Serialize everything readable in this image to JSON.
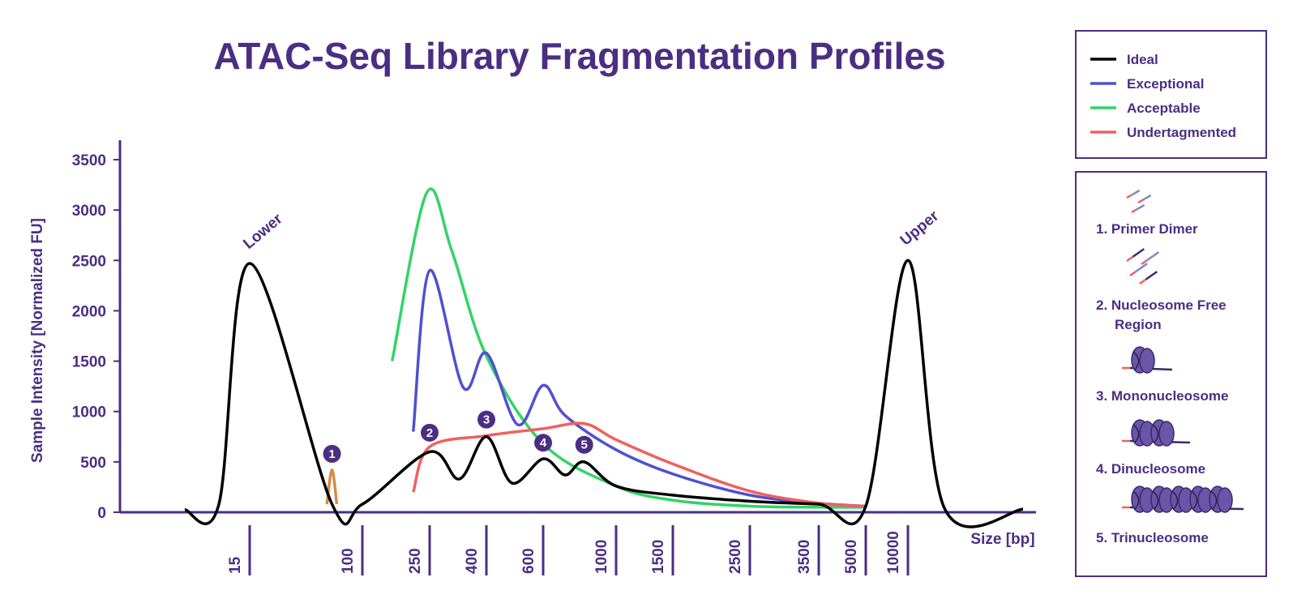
{
  "chart_data": {
    "type": "line",
    "title": "ATAC-Seq Library Fragmentation Profiles",
    "ylabel": "Sample Intensity [Normalized FU]",
    "xlabel": "Size [bp]",
    "ylim": [
      0,
      3500
    ],
    "y_ticks": [
      "0",
      "500",
      "1000",
      "1500",
      "2000",
      "2500",
      "3000",
      "3500"
    ],
    "x_ticks": [
      "15",
      "100",
      "250",
      "400",
      "600",
      "1000",
      "1500",
      "2500",
      "3500",
      "5000",
      "10000"
    ],
    "x_scale": "log",
    "marker_labels": {
      "lower": "Lower",
      "upper": "Upper"
    },
    "series": [
      {
        "name": "Ideal",
        "color": "#000000",
        "points": [
          [
            15,
            2470
          ],
          [
            60,
            80
          ],
          [
            100,
            80
          ],
          [
            250,
            600
          ],
          [
            320,
            330
          ],
          [
            400,
            750
          ],
          [
            480,
            290
          ],
          [
            600,
            530
          ],
          [
            700,
            370
          ],
          [
            800,
            500
          ],
          [
            1000,
            260
          ],
          [
            1500,
            170
          ],
          [
            2500,
            110
          ],
          [
            3500,
            80
          ],
          [
            5000,
            60
          ],
          [
            10000,
            2500
          ]
        ]
      },
      {
        "name": "Exceptional",
        "color": "#5050d0",
        "points": [
          [
            200,
            800
          ],
          [
            250,
            2400
          ],
          [
            330,
            1240
          ],
          [
            400,
            1580
          ],
          [
            500,
            870
          ],
          [
            600,
            1260
          ],
          [
            700,
            960
          ],
          [
            1000,
            620
          ],
          [
            1500,
            380
          ],
          [
            2500,
            170
          ],
          [
            3500,
            90
          ],
          [
            5000,
            60
          ]
        ]
      },
      {
        "name": "Acceptable",
        "color": "#33d466",
        "points": [
          [
            150,
            1500
          ],
          [
            240,
            3170
          ],
          [
            300,
            2600
          ],
          [
            400,
            1550
          ],
          [
            600,
            680
          ],
          [
            1000,
            260
          ],
          [
            1500,
            120
          ],
          [
            2500,
            60
          ],
          [
            3500,
            50
          ],
          [
            5000,
            50
          ]
        ]
      },
      {
        "name": "Undertagmented",
        "color": "#f06060",
        "points": [
          [
            200,
            200
          ],
          [
            250,
            650
          ],
          [
            400,
            760
          ],
          [
            600,
            830
          ],
          [
            800,
            880
          ],
          [
            1000,
            720
          ],
          [
            1500,
            480
          ],
          [
            2500,
            210
          ],
          [
            3500,
            90
          ],
          [
            5000,
            60
          ]
        ]
      },
      {
        "name": "Primer Dimer",
        "color": "#d88a4a",
        "points": [
          [
            55,
            80
          ],
          [
            60,
            420
          ],
          [
            65,
            80
          ]
        ]
      }
    ],
    "annotations": [
      {
        "label": "1",
        "x": 60,
        "y": 580
      },
      {
        "label": "2",
        "x": 250,
        "y": 790
      },
      {
        "label": "3",
        "x": 400,
        "y": 920
      },
      {
        "label": "4",
        "x": 600,
        "y": 690
      },
      {
        "label": "5",
        "x": 800,
        "y": 670
      }
    ]
  },
  "legend": {
    "items": [
      {
        "label": "Ideal",
        "color": "#000000"
      },
      {
        "label": "Exceptional",
        "color": "#5050d0"
      },
      {
        "label": "Acceptable",
        "color": "#33d466"
      },
      {
        "label": "Undertagmented",
        "color": "#f06060"
      }
    ]
  },
  "fragments": {
    "items": [
      {
        "icon": "primer-dimer-icon",
        "lines": [
          "1. Primer Dimer"
        ]
      },
      {
        "icon": "nucleosome-free-icon",
        "lines": [
          "2. Nucleosome Free",
          "Region"
        ]
      },
      {
        "icon": "mononucleosome-icon",
        "lines": [
          "3. Mononucleosome"
        ]
      },
      {
        "icon": "dinucleosome-icon",
        "lines": [
          "4. Dinucleosome"
        ]
      },
      {
        "icon": "trinucleosome-icon",
        "lines": [
          "5. Trinucleosome"
        ]
      }
    ]
  },
  "colors": {
    "text": "#4b2e83",
    "axis": "#4b2e83",
    "badge": "#4b2e83",
    "nucleosome": "#6a55a8"
  }
}
